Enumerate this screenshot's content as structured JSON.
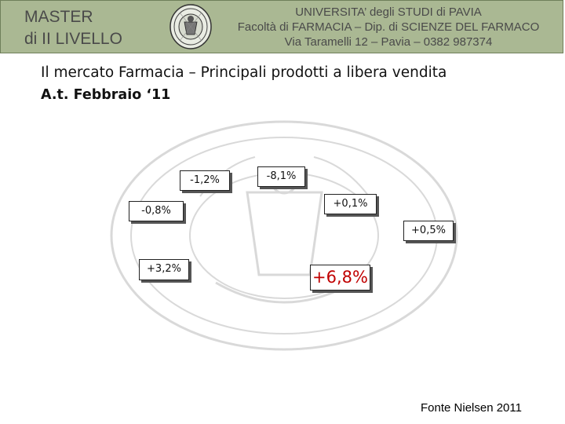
{
  "header": {
    "master_line1": "MASTER",
    "master_line2": "di II LIVELLO",
    "university": "UNIVERSITA’ degli STUDI di PAVIA",
    "faculty": "Facoltà di FARMACIA – Dip. di SCIENZE DEL FARMACO",
    "address": "Via Taramelli 12 – Pavia – 0382 987374"
  },
  "title": {
    "line1": "Il mercato Farmacia – Principali prodotti a libera vendita",
    "line2": "A.t. Febbraio ‘11"
  },
  "labels": {
    "l1": "-1,2%",
    "l2": "-8,1%",
    "l3": "-0,8%",
    "l4": "+0,1%",
    "l5": "+0,5%",
    "l6": "+3,2%",
    "l7": "+6,8%"
  },
  "source": "Fonte Nielsen 2011",
  "colors": {
    "header_bg": "#aab893",
    "highlight": "#c00000"
  }
}
